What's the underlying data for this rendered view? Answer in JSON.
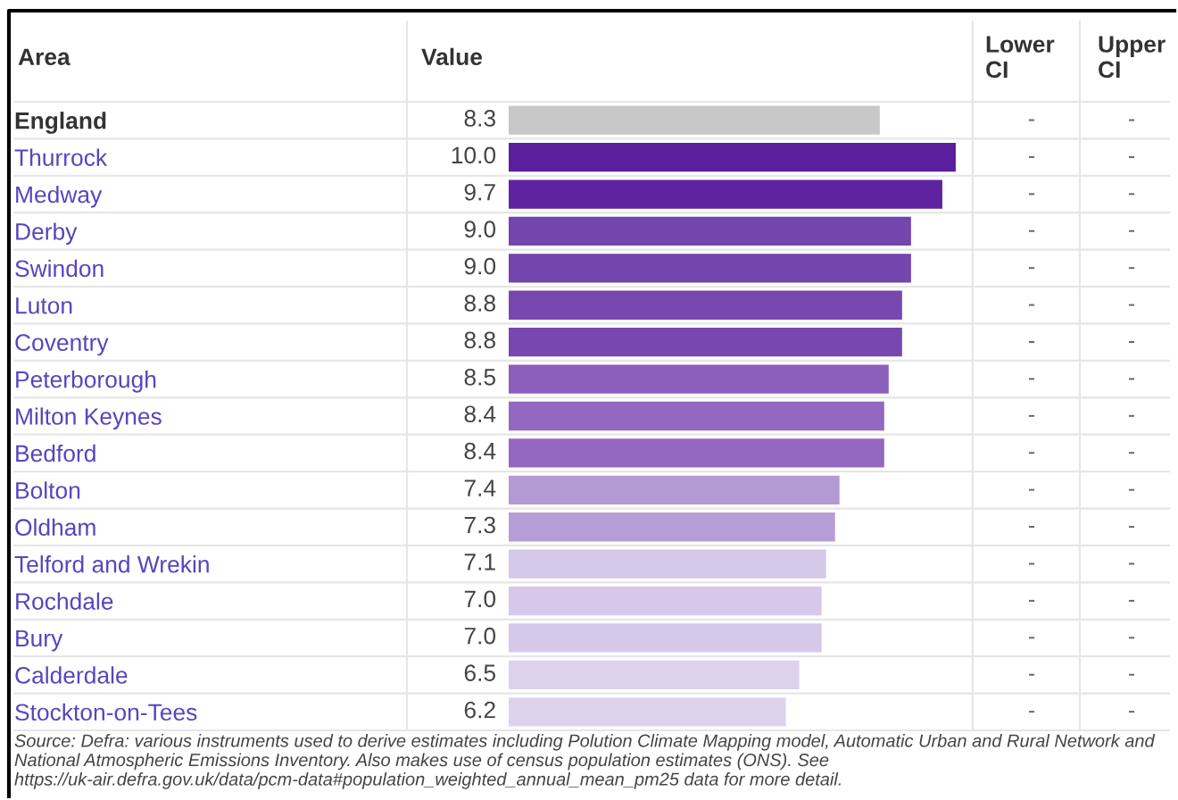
{
  "chart_data": {
    "type": "bar",
    "orientation": "horizontal",
    "data_labels": true,
    "categories": [
      "England",
      "Thurrock",
      "Medway",
      "Derby",
      "Swindon",
      "Luton",
      "Coventry",
      "Peterborough",
      "Milton Keynes",
      "Bedford",
      "Bolton",
      "Oldham",
      "Telford and Wrekin",
      "Rochdale",
      "Bury",
      "Calderdale",
      "Stockton-on-Tees"
    ],
    "values": [
      8.3,
      10.0,
      9.7,
      9.0,
      9.0,
      8.8,
      8.8,
      8.5,
      8.4,
      8.4,
      7.4,
      7.3,
      7.1,
      7.0,
      7.0,
      6.5,
      6.2
    ],
    "value_labels": [
      "8.3",
      "10.0",
      "9.7",
      "9.0",
      "9.0",
      "8.8",
      "8.8",
      "8.5",
      "8.4",
      "8.4",
      "7.4",
      "7.3",
      "7.1",
      "7.0",
      "7.0",
      "6.5",
      "6.2"
    ],
    "colors": [
      "#c8c8c8",
      "#5b1f9e",
      "#5e23a0",
      "#7445ac",
      "#7445ac",
      "#7848ae",
      "#7848ae",
      "#8b5fbb",
      "#9468c0",
      "#9468c0",
      "#b39ad4",
      "#b59dd5",
      "#d5c8e8",
      "#d5c8e8",
      "#d5c8e8",
      "#dcd2ec",
      "#ddd3ed"
    ],
    "annotations": [
      "Area",
      "Value",
      "Lower\nCI",
      "Upper\nCI",
      "-",
      "-",
      "-",
      "-",
      "-",
      "-",
      "-",
      "-",
      "-",
      "-",
      "-",
      "-",
      "-",
      "-",
      "-",
      "-",
      "-",
      "-",
      "-",
      "-",
      "-",
      "-",
      "-",
      "-",
      "-",
      "-",
      "-",
      "-",
      "-",
      "-",
      "-",
      "-",
      "-",
      "-",
      "Source: Defra: various instruments used to derive estimates including Polution Climate Mapping model, Automatic Urban and Rural Network and National Atmospheric Emissions Inventory. Also makes use of census population estimates (ONS). See https://uk-air.defra.gov.uk/data/pcm-data#population_weighted_annual_mean_pm25 data for more detail."
    ]
  }
}
